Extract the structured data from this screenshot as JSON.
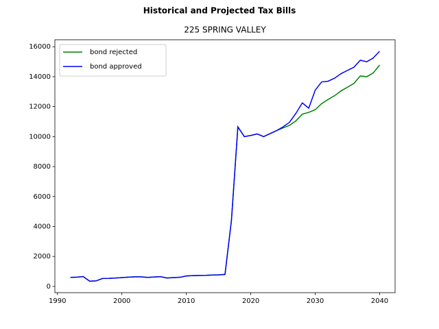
{
  "chart_data": {
    "type": "line",
    "title": "Historical and Projected Tax Bills",
    "subtitle": "225 SPRING VALLEY",
    "x": [
      1992,
      1993,
      1994,
      1995,
      1996,
      1997,
      1998,
      1999,
      2000,
      2001,
      2002,
      2003,
      2004,
      2005,
      2006,
      2007,
      2008,
      2009,
      2010,
      2011,
      2012,
      2013,
      2014,
      2015,
      2016,
      2017,
      2018,
      2019,
      2020,
      2021,
      2022,
      2023,
      2024,
      2025,
      2026,
      2027,
      2028,
      2029,
      2030,
      2031,
      2032,
      2033,
      2034,
      2035,
      2036,
      2037,
      2038,
      2039,
      2040
    ],
    "series": [
      {
        "name": "bond rejected",
        "color": "#008000",
        "values": [
          600,
          620,
          660,
          350,
          370,
          530,
          540,
          560,
          590,
          620,
          640,
          640,
          600,
          630,
          650,
          560,
          590,
          610,
          700,
          720,
          730,
          740,
          760,
          770,
          800,
          4400,
          10650,
          10000,
          10080,
          10180,
          10000,
          10200,
          10400,
          10580,
          10750,
          11050,
          11500,
          11620,
          11800,
          12200,
          12480,
          12730,
          13050,
          13300,
          13550,
          14050,
          14000,
          14250,
          14780
        ]
      },
      {
        "name": "bond approved",
        "color": "#0000ff",
        "values": [
          600,
          620,
          660,
          350,
          370,
          530,
          540,
          560,
          590,
          620,
          640,
          640,
          600,
          630,
          650,
          560,
          590,
          610,
          700,
          720,
          730,
          740,
          760,
          770,
          800,
          4400,
          10650,
          10000,
          10080,
          10180,
          10000,
          10200,
          10400,
          10650,
          10950,
          11550,
          12250,
          11900,
          13100,
          13650,
          13700,
          13900,
          14200,
          14420,
          14630,
          15100,
          15000,
          15250,
          15700
        ]
      }
    ],
    "xlim": [
      1989.6,
      2042.4
    ],
    "xticks": [
      1990,
      2000,
      2010,
      2020,
      2030,
      2040
    ],
    "ylim": [
      -417,
      16467
    ],
    "yticks": [
      0,
      2000,
      4000,
      6000,
      8000,
      10000,
      12000,
      14000,
      16000
    ],
    "grid": false,
    "legend": "upper left"
  }
}
